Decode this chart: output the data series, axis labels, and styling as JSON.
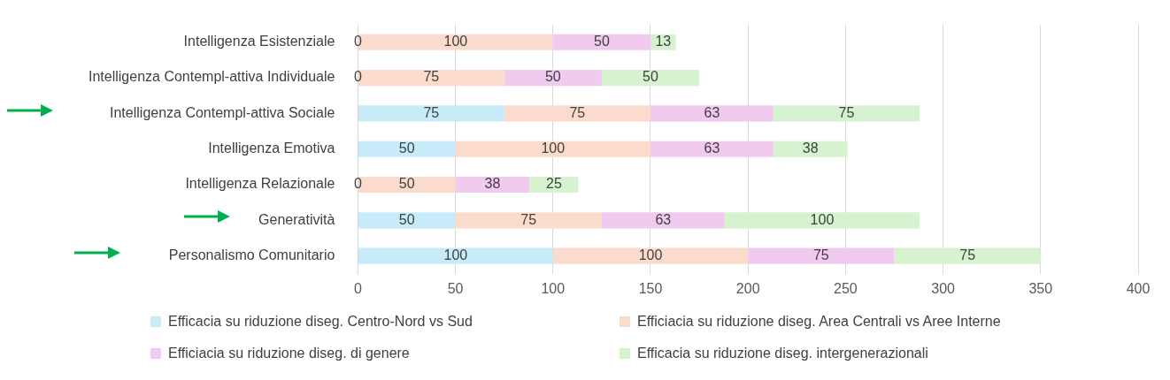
{
  "chart_data": {
    "type": "bar",
    "orientation": "horizontal",
    "stacked": true,
    "categories": [
      "Intelligenza Esistenziale",
      "Intelligenza Contempl-attiva Individuale",
      "Intelligenza Contempl-attiva Sociale",
      "Intelligenza Emotiva",
      "Intelligenza Relazionale",
      "Generatività",
      "Personalismo Comunitario"
    ],
    "series": [
      {
        "name": "Efficacia su riduzione diseg. Centro-Nord vs Sud",
        "color": "#c7ebf8",
        "values": [
          null,
          null,
          75,
          50,
          null,
          50,
          100
        ]
      },
      {
        "name": "Efficiacia su riduzione diseg. Area Centrali vs Aree Interne",
        "color": "#fbdccc",
        "values": [
          100,
          75,
          75,
          100,
          50,
          75,
          100
        ]
      },
      {
        "name": "Efficiacia su riduzione diseg. di genere",
        "color": "#f0caef",
        "values": [
          50,
          50,
          63,
          63,
          38,
          63,
          75
        ]
      },
      {
        "name": "Efficacia su riduzione diseg. intergenerazionali",
        "color": "#d6f2cf",
        "values": [
          13,
          50,
          75,
          38,
          25,
          100,
          75
        ]
      }
    ],
    "xlim": [
      0,
      400
    ],
    "xticks": [
      0,
      50,
      100,
      150,
      200,
      250,
      300,
      350,
      400
    ],
    "grid": "x",
    "legend": "bottom",
    "data_labels": true,
    "annotations": [
      {
        "text": "0",
        "y": "Intelligenza Esistenziale"
      },
      {
        "text": "0",
        "y": "Intelligenza Contempl-attiva Individuale"
      },
      {
        "text": "0",
        "y": "Intelligenza Relazionale"
      }
    ]
  }
}
